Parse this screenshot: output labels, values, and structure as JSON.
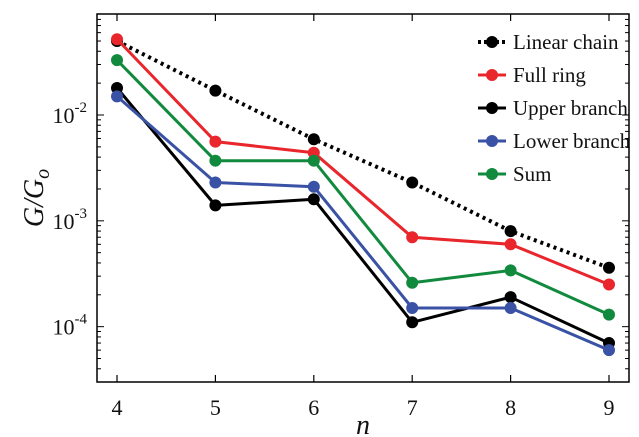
{
  "chart_data": {
    "type": "line",
    "xlabel": "n",
    "ylabel_main": "G/G",
    "ylabel_sub": "o",
    "yscale": "log",
    "xlim": [
      4,
      9
    ],
    "ylim": [
      3e-05,
      0.09
    ],
    "x": [
      4,
      5,
      6,
      7,
      8,
      9
    ],
    "xticks": [
      "4",
      "5",
      "6",
      "7",
      "8",
      "9"
    ],
    "yticks": [
      {
        "value": 0.0001,
        "base": "10",
        "exp": "-4"
      },
      {
        "value": 0.001,
        "base": "10",
        "exp": "-3"
      },
      {
        "value": 0.01,
        "base": "10",
        "exp": "-2"
      }
    ],
    "legend_position": "top-right",
    "series": [
      {
        "name": "Linear chain",
        "color": "#000000",
        "style": "dotted",
        "values": [
          0.05,
          0.017,
          0.0059,
          0.0023,
          0.0008,
          0.00036
        ]
      },
      {
        "name": "Full ring",
        "color": "#e8262c",
        "style": "solid",
        "values": [
          0.052,
          0.0056,
          0.0044,
          0.0007,
          0.0006,
          0.00025
        ]
      },
      {
        "name": "Upper branch",
        "color": "#000000",
        "style": "solid",
        "values": [
          0.018,
          0.0014,
          0.0016,
          0.00011,
          0.00019,
          7e-05
        ]
      },
      {
        "name": "Lower branch",
        "color": "#3a52a5",
        "style": "solid",
        "values": [
          0.015,
          0.0023,
          0.0021,
          0.00015,
          0.00015,
          6e-05
        ]
      },
      {
        "name": "Sum",
        "color": "#118a3e",
        "style": "solid",
        "values": [
          0.033,
          0.0037,
          0.0037,
          0.00026,
          0.00034,
          0.00013
        ]
      }
    ]
  }
}
